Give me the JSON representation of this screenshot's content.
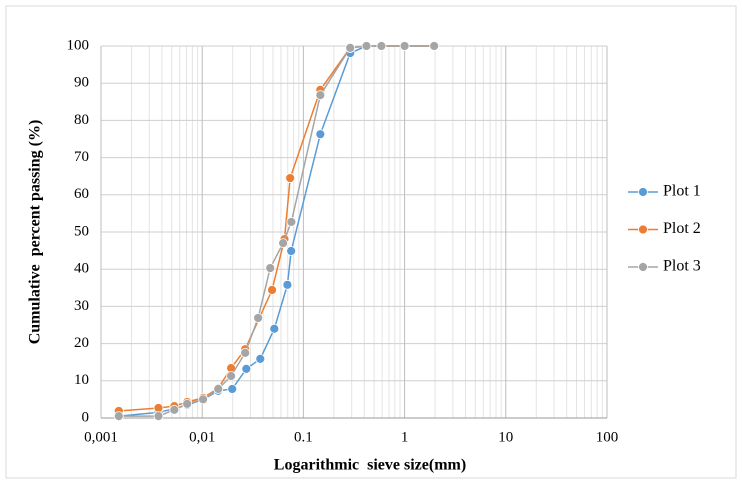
{
  "chart_data": {
    "type": "line",
    "xscale": "log",
    "grid": true,
    "legend": "right",
    "xlabel": "Logarithmic  sieve size(mm)",
    "ylabel": "Cumulative  percent passing (%)",
    "xlim": [
      0.001,
      100
    ],
    "ylim": [
      0,
      100
    ],
    "xticks": [
      {
        "value": 0.001,
        "label": "0,001"
      },
      {
        "value": 0.01,
        "label": "0,01"
      },
      0.1,
      1,
      10,
      100
    ],
    "yticks": [
      0,
      10,
      20,
      30,
      40,
      50,
      60,
      70,
      80,
      90,
      100
    ],
    "series": [
      {
        "name": "Plot 1",
        "color": "#5b9bd5",
        "x": [
          0.0015,
          0.0037,
          0.0053,
          0.0071,
          0.0102,
          0.0144,
          0.0198,
          0.0273,
          0.0375,
          0.0516,
          0.0695,
          0.0757,
          0.147,
          0.29,
          0.42,
          0.59,
          1,
          1.96
        ],
        "values": [
          0.5,
          1.5,
          2.5,
          3.5,
          5,
          7.3,
          7.8,
          13.2,
          15.9,
          24,
          35.8,
          44.9,
          76.3,
          98.1,
          100,
          100,
          100,
          100
        ]
      },
      {
        "name": "Plot 2",
        "color": "#ed7d31",
        "x": [
          0.0015,
          0.0037,
          0.0053,
          0.0071,
          0.0102,
          0.0144,
          0.0193,
          0.0266,
          0.049,
          0.065,
          0.074,
          0.147,
          0.29,
          0.42,
          0.59,
          1,
          1.96
        ],
        "values": [
          1.9,
          2.7,
          3.2,
          4.3,
          5.4,
          8,
          13.4,
          18.5,
          34.4,
          48.1,
          64.5,
          88.2,
          99.5,
          100,
          100,
          100,
          100
        ]
      },
      {
        "name": "Plot 3",
        "color": "#a5a5a5",
        "x": [
          0.0015,
          0.0037,
          0.0053,
          0.0071,
          0.0102,
          0.0144,
          0.0193,
          0.0266,
          0.0357,
          0.047,
          0.063,
          0.076,
          0.147,
          0.29,
          0.42,
          0.59,
          1,
          1.96
        ],
        "values": [
          0.5,
          0.5,
          2.2,
          3.8,
          5,
          7.8,
          11.3,
          17.5,
          26.9,
          40.3,
          47,
          52.7,
          86.8,
          99.5,
          100,
          100,
          100,
          100
        ]
      }
    ]
  }
}
